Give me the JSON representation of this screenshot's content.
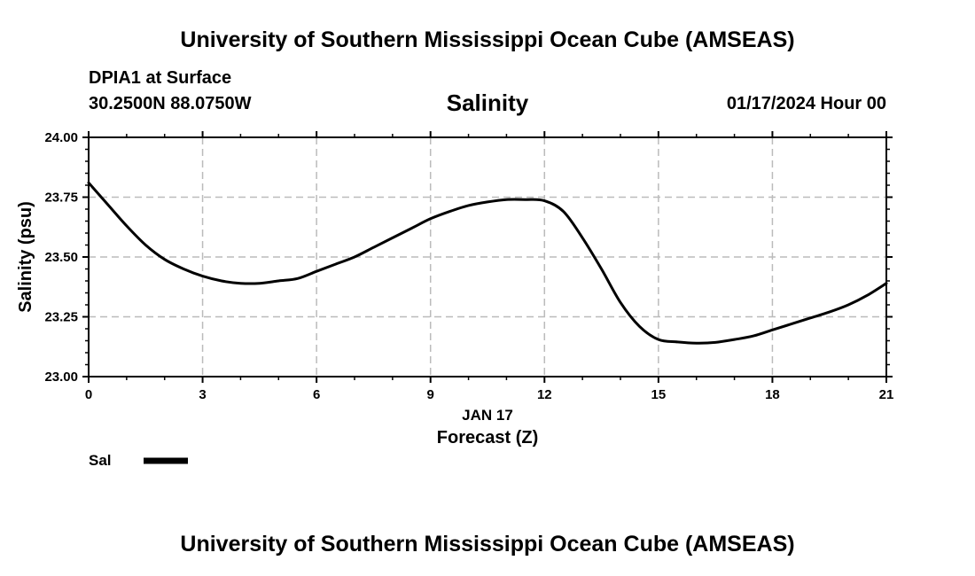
{
  "header": {
    "title": "University of Southern Mississippi Ocean Cube (AMSEAS)",
    "station": "DPIA1 at Surface",
    "coords": "30.2500N  88.0750W",
    "datetime": "01/17/2024 Hour 00"
  },
  "footer": {
    "title": "University of Southern Mississippi Ocean Cube (AMSEAS)"
  },
  "chart_data": {
    "type": "line",
    "title": "Salinity",
    "xlabel": "Forecast (Z)",
    "xlabel_date": "JAN 17",
    "ylabel": "Salinity (psu)",
    "xlim": [
      0,
      21
    ],
    "ylim": [
      23.0,
      24.0
    ],
    "x_ticks": [
      0,
      3,
      6,
      9,
      12,
      15,
      18,
      21
    ],
    "x_tick_labels": [
      "0",
      "3",
      "6",
      "9",
      "12",
      "15",
      "18",
      "21"
    ],
    "y_ticks": [
      23.0,
      23.25,
      23.5,
      23.75,
      24.0
    ],
    "y_tick_labels": [
      "23.00",
      "23.25",
      "23.50",
      "23.75",
      "24.00"
    ],
    "grid": true,
    "legend": [
      {
        "name": "Sal",
        "color": "#000000"
      }
    ],
    "series": [
      {
        "name": "Sal",
        "color": "#000000",
        "x": [
          0,
          0.5,
          1,
          1.5,
          2,
          2.5,
          3,
          3.5,
          4,
          4.5,
          5,
          5.5,
          6,
          6.5,
          7,
          7.5,
          8,
          8.5,
          9,
          9.5,
          10,
          10.5,
          11,
          11.5,
          12,
          12.5,
          13,
          13.5,
          14,
          14.5,
          15,
          15.5,
          16,
          16.5,
          17,
          17.5,
          18,
          18.5,
          19,
          19.5,
          20,
          20.5,
          21
        ],
        "values": [
          23.81,
          23.72,
          23.63,
          23.55,
          23.49,
          23.45,
          23.42,
          23.4,
          23.39,
          23.39,
          23.4,
          23.41,
          23.44,
          23.47,
          23.5,
          23.54,
          23.58,
          23.62,
          23.66,
          23.69,
          23.715,
          23.73,
          23.74,
          23.74,
          23.735,
          23.69,
          23.58,
          23.45,
          23.31,
          23.21,
          23.155,
          23.145,
          23.14,
          23.143,
          23.155,
          23.17,
          23.195,
          23.22,
          23.245,
          23.27,
          23.3,
          23.34,
          23.39
        ]
      }
    ]
  }
}
